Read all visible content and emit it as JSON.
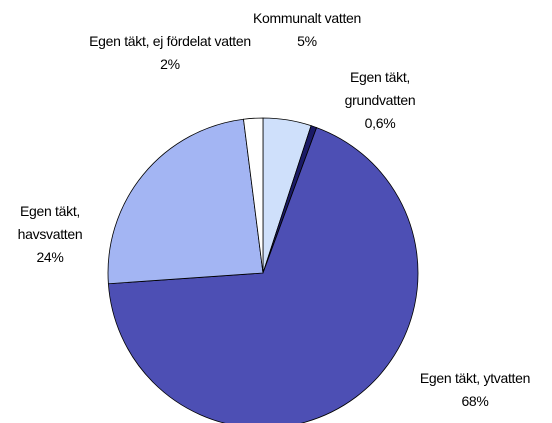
{
  "chart_data": {
    "type": "pie",
    "categories": [
      "Kommunalt vatten",
      "Egen täkt, grundvatten",
      "Egen täkt, ytvatten",
      "Egen täkt, havsvatten",
      "Egen täkt, ej fördelat vatten"
    ],
    "values": [
      5,
      0.6,
      68,
      24,
      2
    ],
    "value_labels": [
      "5%",
      "0,6%",
      "68%",
      "24%",
      "2%"
    ],
    "colors": [
      "#cfe0fb",
      "#1a1a66",
      "#4d4fb4",
      "#a3b5f3",
      "#ffffff"
    ]
  }
}
